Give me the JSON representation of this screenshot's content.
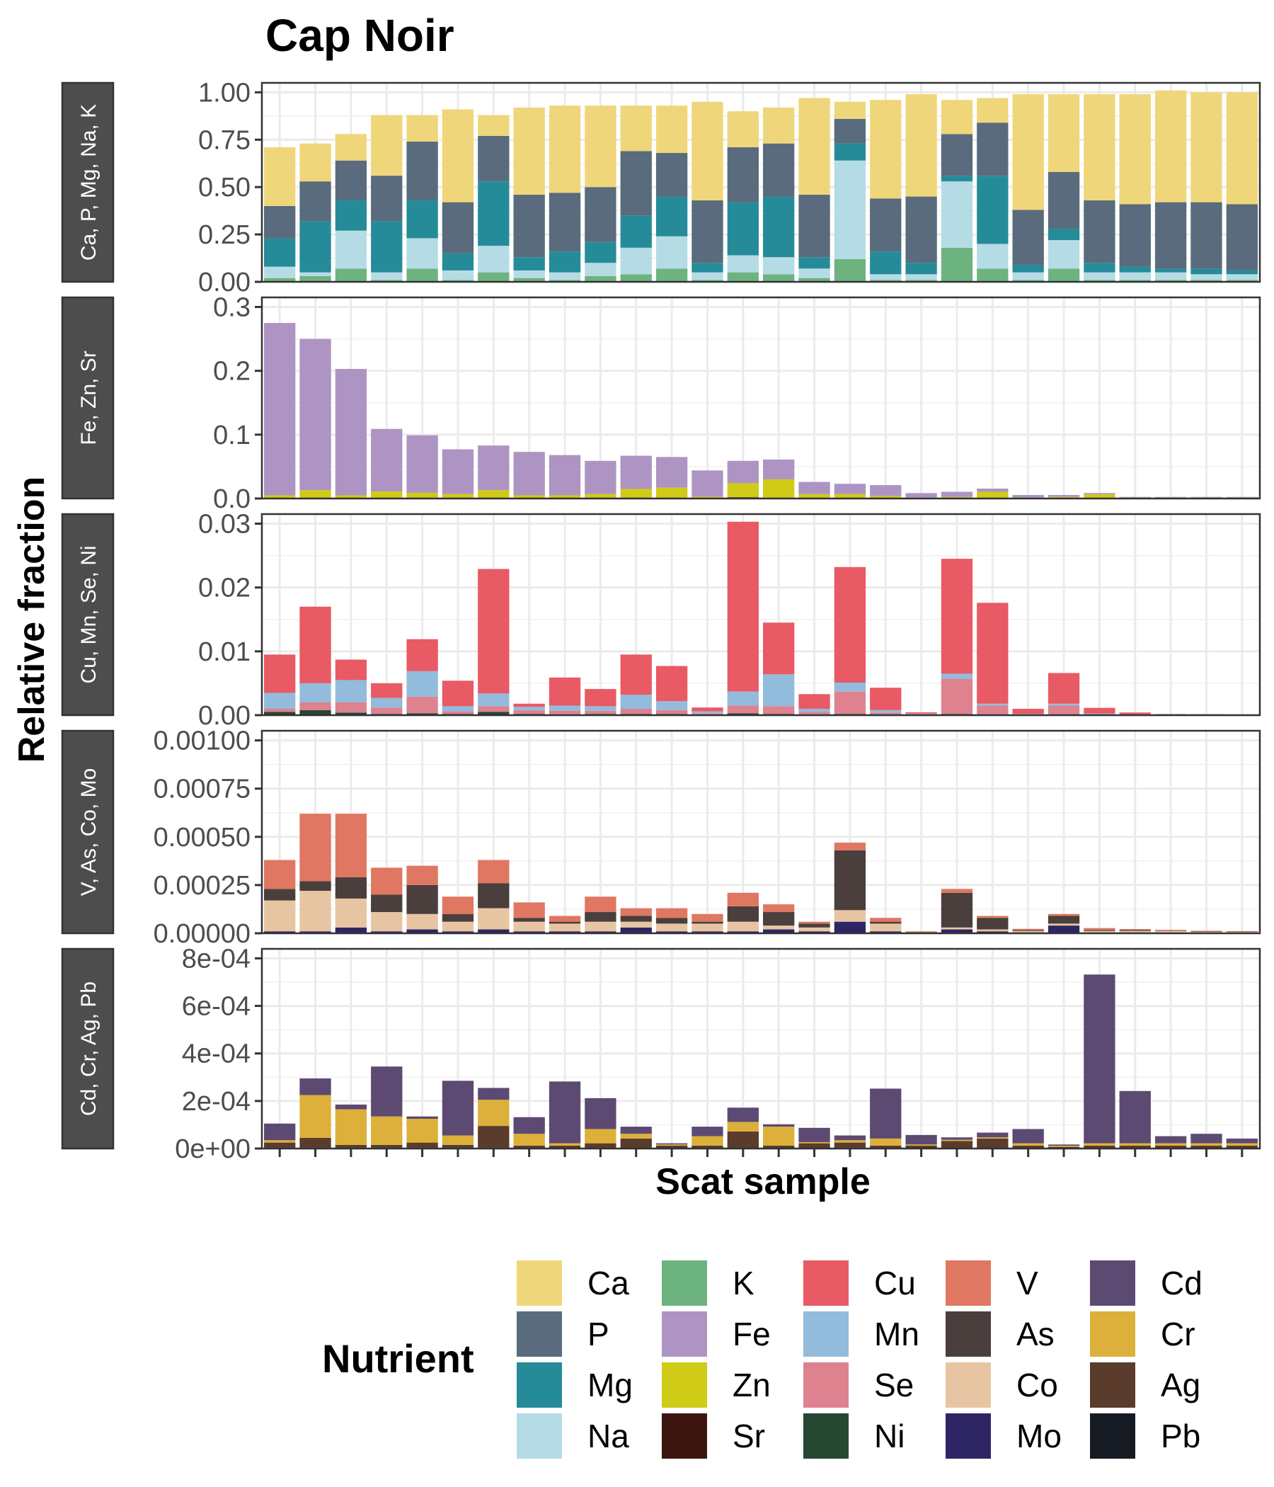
{
  "chart_data": {
    "type": "bar",
    "title": "Cap Noir",
    "xlabel": "Scat sample",
    "ylabel": "Relative fraction",
    "n_samples": 28,
    "grid": true,
    "legend": {
      "title": "Nutrient",
      "position": "bottom",
      "columns": [
        [
          "Ca",
          "P",
          "Mg",
          "Na"
        ],
        [
          "K",
          "Fe",
          "Zn",
          "Sr"
        ],
        [
          "Cu",
          "Mn",
          "Se",
          "Ni"
        ],
        [
          "V",
          "As",
          "Co",
          "Mo"
        ],
        [
          "Cd",
          "Cr",
          "Ag",
          "Pb"
        ]
      ]
    },
    "colors": {
      "Ca": "#f0d67a",
      "P": "#596b7c",
      "Mg": "#268b99",
      "Na": "#b5dce5",
      "K": "#6db380",
      "Fe": "#ae94c2",
      "Zn": "#cfcb16",
      "Sr": "#3d170f",
      "Cu": "#e85a64",
      "Mn": "#93bbdc",
      "Se": "#de8290",
      "Ni": "#264732",
      "V": "#e07762",
      "As": "#4a3f3c",
      "Co": "#e8c5a2",
      "Mo": "#2e2565",
      "Cd": "#5d4a72",
      "Cr": "#dcb03a",
      "Ag": "#5b3b2b",
      "Pb": "#161b23"
    },
    "panels": [
      {
        "strip": "Ca, P, Mg, Na, K",
        "ylim": [
          0,
          1.05
        ],
        "ticks": [
          0,
          0.25,
          0.5,
          0.75,
          1.0
        ],
        "tick_labels": [
          "0.00",
          "0.25",
          "0.50",
          "0.75",
          "1.00"
        ],
        "stack_order": [
          "K",
          "Na",
          "Mg",
          "P",
          "Ca"
        ],
        "series": [
          {
            "name": "K",
            "values": [
              0.02,
              0.03,
              0.07,
              0.01,
              0.07,
              0.01,
              0.05,
              0.02,
              0.01,
              0.03,
              0.04,
              0.07,
              0.01,
              0.05,
              0.04,
              0.02,
              0.12,
              0.01,
              0.01,
              0.18,
              0.07,
              0.01,
              0.07,
              0.01,
              0.01,
              0.01,
              0.01,
              0.01
            ]
          },
          {
            "name": "Na",
            "values": [
              0.06,
              0.02,
              0.2,
              0.04,
              0.16,
              0.05,
              0.14,
              0.04,
              0.04,
              0.07,
              0.14,
              0.17,
              0.04,
              0.09,
              0.09,
              0.05,
              0.52,
              0.03,
              0.03,
              0.35,
              0.13,
              0.04,
              0.15,
              0.04,
              0.04,
              0.04,
              0.03,
              0.03
            ]
          },
          {
            "name": "Mg",
            "values": [
              0.15,
              0.27,
              0.16,
              0.27,
              0.2,
              0.09,
              0.34,
              0.07,
              0.11,
              0.11,
              0.17,
              0.21,
              0.05,
              0.28,
              0.32,
              0.06,
              0.09,
              0.12,
              0.06,
              0.03,
              0.36,
              0.04,
              0.06,
              0.05,
              0.03,
              0.02,
              0.03,
              0.02
            ]
          },
          {
            "name": "P",
            "values": [
              0.17,
              0.21,
              0.21,
              0.24,
              0.31,
              0.27,
              0.24,
              0.33,
              0.31,
              0.29,
              0.34,
              0.23,
              0.33,
              0.29,
              0.28,
              0.33,
              0.13,
              0.28,
              0.35,
              0.22,
              0.28,
              0.29,
              0.3,
              0.33,
              0.33,
              0.35,
              0.35,
              0.35
            ]
          },
          {
            "name": "Ca",
            "values": [
              0.31,
              0.2,
              0.14,
              0.32,
              0.14,
              0.49,
              0.11,
              0.46,
              0.46,
              0.43,
              0.24,
              0.25,
              0.52,
              0.19,
              0.19,
              0.51,
              0.09,
              0.52,
              0.54,
              0.18,
              0.13,
              0.61,
              0.41,
              0.56,
              0.58,
              0.59,
              0.58,
              0.59
            ]
          }
        ]
      },
      {
        "strip": "Fe, Zn, Sr",
        "ylim": [
          0,
          0.315
        ],
        "ticks": [
          0,
          0.1,
          0.2,
          0.3
        ],
        "tick_labels": [
          "0.0",
          "0.1",
          "0.2",
          "0.3"
        ],
        "stack_order": [
          "Sr",
          "Zn",
          "Fe"
        ],
        "series": [
          {
            "name": "Sr",
            "values": [
              0.001,
              0.001,
              0.001,
              0.001,
              0.001,
              0.001,
              0.001,
              0.001,
              0.001,
              0.001,
              0.001,
              0.001,
              0.001,
              0.002,
              0.001,
              0.001,
              0.001,
              0.001,
              0.0005,
              0.0005,
              0.0005,
              0.0005,
              0.0005,
              0.0005,
              0.0005,
              0.0005,
              0.0005,
              0.0005
            ]
          },
          {
            "name": "Zn",
            "values": [
              0.004,
              0.012,
              0.004,
              0.01,
              0.008,
              0.006,
              0.012,
              0.004,
              0.004,
              0.006,
              0.014,
              0.016,
              0.002,
              0.022,
              0.029,
              0.006,
              0.006,
              0.003,
              0.001,
              0.002,
              0.01,
              0.001,
              0.002,
              0.006,
              0.001,
              0.001,
              0.001,
              0.001
            ]
          },
          {
            "name": "Fe",
            "values": [
              0.27,
              0.237,
              0.198,
              0.098,
              0.09,
              0.07,
              0.07,
              0.068,
              0.063,
              0.052,
              0.052,
              0.048,
              0.041,
              0.035,
              0.031,
              0.019,
              0.016,
              0.017,
              0.007,
              0.008,
              0.005,
              0.004,
              0.003,
              0.002,
              0.001,
              0.001,
              0.001,
              0.001
            ]
          }
        ]
      },
      {
        "strip": "Cu, Mn, Se, Ni",
        "ylim": [
          0,
          0.0315
        ],
        "ticks": [
          0,
          0.01,
          0.02,
          0.03
        ],
        "tick_labels": [
          "0.00",
          "0.01",
          "0.02",
          "0.03"
        ],
        "stack_order": [
          "Ni",
          "Se",
          "Mn",
          "Cu"
        ],
        "series": [
          {
            "name": "Ni",
            "values": [
              0.0005,
              0.0008,
              0.0004,
              0.0002,
              0.0003,
              0.0002,
              0.0005,
              0.0002,
              0.0001,
              0.0002,
              0.0002,
              0.0002,
              0.0001,
              0.0003,
              0.0002,
              0.0001,
              0.0002,
              0.0001,
              5e-05,
              0.0002,
              0.0001,
              5e-05,
              0.0001,
              5e-05,
              2e-05,
              2e-05,
              2e-05,
              2e-05
            ]
          },
          {
            "name": "Se",
            "values": [
              0.0005,
              0.0012,
              0.0016,
              0.001,
              0.0026,
              0.0004,
              0.0009,
              0.0006,
              0.0006,
              0.0005,
              0.0008,
              0.0006,
              0.0002,
              0.0012,
              0.0012,
              0.0004,
              0.0035,
              0.0003,
              0.0001,
              0.0055,
              0.0014,
              5e-05,
              0.0014,
              0.0001,
              5e-05,
              2e-05,
              2e-05,
              2e-05
            ]
          },
          {
            "name": "Mn",
            "values": [
              0.0025,
              0.003,
              0.0035,
              0.0015,
              0.004,
              0.0008,
              0.002,
              0.0005,
              0.0008,
              0.0007,
              0.0022,
              0.0014,
              0.0003,
              0.0022,
              0.005,
              0.0005,
              0.0014,
              0.0004,
              0.0001,
              0.0008,
              0.0003,
              0.0001,
              0.0003,
              0.0001,
              5e-05,
              3e-05,
              3e-05,
              2e-05
            ]
          },
          {
            "name": "Cu",
            "values": [
              0.006,
              0.012,
              0.0032,
              0.0023,
              0.005,
              0.004,
              0.0195,
              0.0005,
              0.0044,
              0.0027,
              0.0063,
              0.0055,
              0.0006,
              0.0266,
              0.0081,
              0.0023,
              0.0181,
              0.0035,
              0.0002,
              0.018,
              0.0158,
              0.0008,
              0.0048,
              0.0009,
              0.0003,
              0.0001,
              8e-05,
              6e-05
            ]
          }
        ]
      },
      {
        "strip": "V, As, Co, Mo",
        "ylim": [
          0,
          0.00105
        ],
        "ticks": [
          0,
          0.00025,
          0.0005,
          0.00075,
          0.001
        ],
        "tick_labels": [
          "0.00000",
          "0.00025",
          "0.00050",
          "0.00075",
          "0.00100"
        ],
        "stack_order": [
          "Mo",
          "Co",
          "As",
          "V"
        ],
        "series": [
          {
            "name": "Mo",
            "values": [
              1e-05,
              1e-05,
              3e-05,
              1e-05,
              2e-05,
              1e-05,
              2e-05,
              1e-05,
              1e-05,
              1e-05,
              3e-05,
              1e-05,
              1e-05,
              1e-05,
              2e-05,
              1e-05,
              6e-05,
              1e-05,
              2e-06,
              2e-05,
              1e-05,
              2e-06,
              4e-05,
              2e-06,
              2e-06,
              2e-06,
              2e-06,
              2e-06
            ]
          },
          {
            "name": "Co",
            "values": [
              0.00016,
              0.00021,
              0.00015,
              0.0001,
              8e-05,
              5e-05,
              0.00011,
              5e-05,
              4e-05,
              5e-05,
              3e-05,
              4e-05,
              4e-05,
              5e-05,
              2e-05,
              2e-05,
              6e-05,
              4e-05,
              2e-06,
              1e-05,
              1e-05,
              1e-05,
              1e-05,
              1e-05,
              1e-05,
              1e-05,
              5e-06,
              5e-06
            ]
          },
          {
            "name": "As",
            "values": [
              6e-05,
              5e-05,
              0.00011,
              9e-05,
              0.00015,
              4e-05,
              0.00013,
              2e-05,
              1e-05,
              5e-05,
              3e-05,
              3e-05,
              1e-05,
              8e-05,
              7e-05,
              2e-05,
              0.00031,
              1e-05,
              2e-06,
              0.00018,
              6e-05,
              5e-06,
              4e-05,
              5e-06,
              5e-06,
              2e-06,
              2e-06,
              2e-06
            ]
          },
          {
            "name": "V",
            "values": [
              0.00015,
              0.00035,
              0.00033,
              0.00014,
              0.0001,
              9e-05,
              0.00012,
              8e-05,
              3e-05,
              8e-05,
              4e-05,
              5e-05,
              4e-05,
              7e-05,
              4e-05,
              1e-05,
              4e-05,
              2e-05,
              4e-06,
              2e-05,
              1e-05,
              6e-06,
              1e-05,
              1e-05,
              5e-06,
              4e-06,
              4e-06,
              2e-06
            ]
          }
        ]
      },
      {
        "strip": "Cd, Cr, Ag, Pb",
        "ylim": [
          0,
          0.00084
        ],
        "ticks": [
          0,
          0.0002,
          0.0004,
          0.0006,
          0.0008
        ],
        "tick_labels": [
          "0e+00",
          "2e-04",
          "4e-04",
          "6e-04",
          "8e-04"
        ],
        "stack_order": [
          "Pb",
          "Ag",
          "Cr",
          "Cd"
        ],
        "series": [
          {
            "name": "Pb",
            "values": [
              5e-06,
              5e-06,
              5e-06,
              5e-06,
              5e-06,
              5e-06,
              5e-06,
              2e-06,
              2e-06,
              2e-06,
              2e-06,
              2e-06,
              2e-06,
              2e-06,
              2e-06,
              2e-06,
              5e-06,
              2e-06,
              2e-06,
              2e-06,
              2e-06,
              2e-06,
              2e-06,
              2e-06,
              2e-06,
              2e-06,
              2e-06,
              2e-06
            ]
          },
          {
            "name": "Ag",
            "values": [
              2e-05,
              4e-05,
              1e-05,
              1e-05,
              2e-05,
              1e-05,
              9e-05,
              1e-05,
              1e-05,
              2e-05,
              4e-05,
              1e-05,
              1e-05,
              7e-05,
              1e-05,
              2e-05,
              2e-05,
              1e-05,
              1e-05,
              3e-05,
              4e-05,
              1e-05,
              5e-06,
              1e-05,
              1e-05,
              1e-05,
              1e-05,
              1e-05
            ]
          },
          {
            "name": "Cr",
            "values": [
              1e-05,
              0.00018,
              0.00015,
              0.00012,
              0.0001,
              4e-05,
              0.00011,
              5e-05,
              1e-05,
              6e-05,
              2e-05,
              5e-06,
              4e-05,
              4e-05,
              8e-05,
              5e-06,
              1e-05,
              3e-05,
              5e-06,
              5e-06,
              5e-06,
              1e-05,
              5e-06,
              1e-05,
              1e-05,
              1e-05,
              1e-05,
              1e-05
            ]
          },
          {
            "name": "Cd",
            "values": [
              7e-05,
              7e-05,
              2e-05,
              0.00021,
              1e-05,
              0.00023,
              5e-05,
              7e-05,
              0.00026,
              0.00013,
              3e-05,
              5e-06,
              4e-05,
              6e-05,
              1e-05,
              6e-05,
              2e-05,
              0.00021,
              4e-05,
              1e-05,
              2e-05,
              6e-05,
              5e-06,
              0.00071,
              0.00022,
              3e-05,
              4e-05,
              2e-05
            ]
          }
        ]
      }
    ]
  }
}
